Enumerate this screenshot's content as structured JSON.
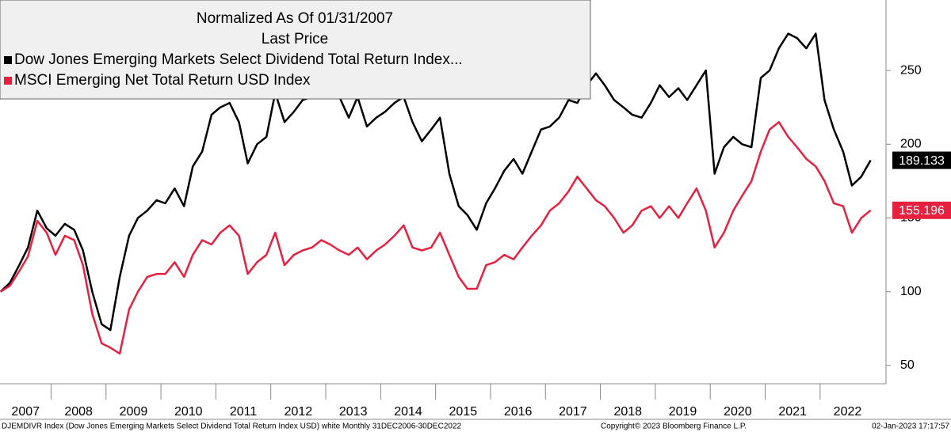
{
  "chart_data": {
    "type": "line",
    "title": "Normalized As Of 01/31/2007",
    "subtitle": "Last Price",
    "categories": [
      "2007",
      "2008",
      "2009",
      "2010",
      "2011",
      "2012",
      "2013",
      "2014",
      "2015",
      "2016",
      "2017",
      "2018",
      "2019",
      "2020",
      "2021",
      "2022"
    ],
    "x": [
      2007.08,
      2007.25,
      2007.42,
      2007.58,
      2007.75,
      2007.92,
      2008.08,
      2008.25,
      2008.42,
      2008.58,
      2008.75,
      2008.92,
      2009.08,
      2009.25,
      2009.42,
      2009.58,
      2009.75,
      2009.92,
      2010.08,
      2010.25,
      2010.42,
      2010.58,
      2010.75,
      2010.92,
      2011.08,
      2011.25,
      2011.42,
      2011.58,
      2011.75,
      2011.92,
      2012.08,
      2012.25,
      2012.42,
      2012.58,
      2012.75,
      2012.92,
      2013.08,
      2013.25,
      2013.42,
      2013.58,
      2013.75,
      2013.92,
      2014.08,
      2014.25,
      2014.42,
      2014.58,
      2014.75,
      2014.92,
      2015.08,
      2015.25,
      2015.42,
      2015.58,
      2015.75,
      2015.92,
      2016.08,
      2016.25,
      2016.42,
      2016.58,
      2016.75,
      2016.92,
      2017.08,
      2017.25,
      2017.42,
      2017.58,
      2017.75,
      2017.92,
      2018.08,
      2018.25,
      2018.42,
      2018.58,
      2018.75,
      2018.92,
      2019.08,
      2019.25,
      2019.42,
      2019.58,
      2019.75,
      2019.92,
      2020.08,
      2020.25,
      2020.42,
      2020.58,
      2020.75,
      2020.92,
      2021.08,
      2021.25,
      2021.42,
      2021.58,
      2021.75,
      2021.92,
      2022.08,
      2022.25,
      2022.42,
      2022.58,
      2022.75,
      2022.92
    ],
    "series": [
      {
        "name": "Dow Jones Emerging Markets Select Dividend Total Return Index...",
        "color": "#000000",
        "values": [
          100,
          106,
          118,
          130,
          155,
          143,
          138,
          146,
          142,
          128,
          100,
          78,
          74,
          110,
          138,
          150,
          155,
          162,
          160,
          170,
          158,
          185,
          195,
          220,
          225,
          228,
          215,
          187,
          200,
          205,
          235,
          215,
          222,
          230,
          232,
          245,
          238,
          232,
          218,
          232,
          212,
          218,
          222,
          228,
          232,
          215,
          202,
          210,
          218,
          180,
          158,
          152,
          142,
          160,
          170,
          182,
          190,
          180,
          195,
          210,
          212,
          218,
          230,
          228,
          240,
          248,
          240,
          230,
          225,
          220,
          218,
          228,
          240,
          232,
          238,
          230,
          240,
          250,
          180,
          198,
          205,
          200,
          198,
          245,
          250,
          265,
          275,
          272,
          265,
          275,
          230,
          210,
          195,
          172,
          178,
          189.133
        ]
      },
      {
        "name": "MSCI Emerging Net Total Return USD Index",
        "color": "#e8203f",
        "values": [
          100,
          104,
          114,
          124,
          148,
          140,
          125,
          138,
          135,
          118,
          85,
          65,
          62,
          58,
          88,
          100,
          110,
          112,
          112,
          120,
          110,
          125,
          135,
          132,
          140,
          145,
          138,
          112,
          120,
          125,
          140,
          118,
          125,
          128,
          130,
          135,
          132,
          128,
          125,
          130,
          122,
          128,
          132,
          138,
          145,
          130,
          128,
          130,
          140,
          125,
          110,
          102,
          102,
          118,
          120,
          125,
          122,
          130,
          138,
          145,
          155,
          160,
          168,
          178,
          170,
          162,
          158,
          150,
          140,
          145,
          155,
          158,
          150,
          158,
          150,
          160,
          170,
          155,
          130,
          140,
          155,
          165,
          175,
          195,
          210,
          215,
          205,
          198,
          190,
          185,
          175,
          160,
          158,
          140,
          150,
          155.196
        ]
      }
    ],
    "xlim": [
      2007.07,
      2023.2
    ],
    "ylim": [
      37.6,
      297.8
    ],
    "yticks": [
      50,
      100,
      150,
      200,
      250
    ],
    "footer_left": "DJEMDIVR Index (Dow Jones Emerging Markets Select Dividend Total Return Index USD) white  Monthly 31DEC2006-30DEC2022",
    "footer_center": "Copyright© 2023 Bloomberg Finance L.P.",
    "footer_right": "02-Jan-2023 17:17:57"
  }
}
